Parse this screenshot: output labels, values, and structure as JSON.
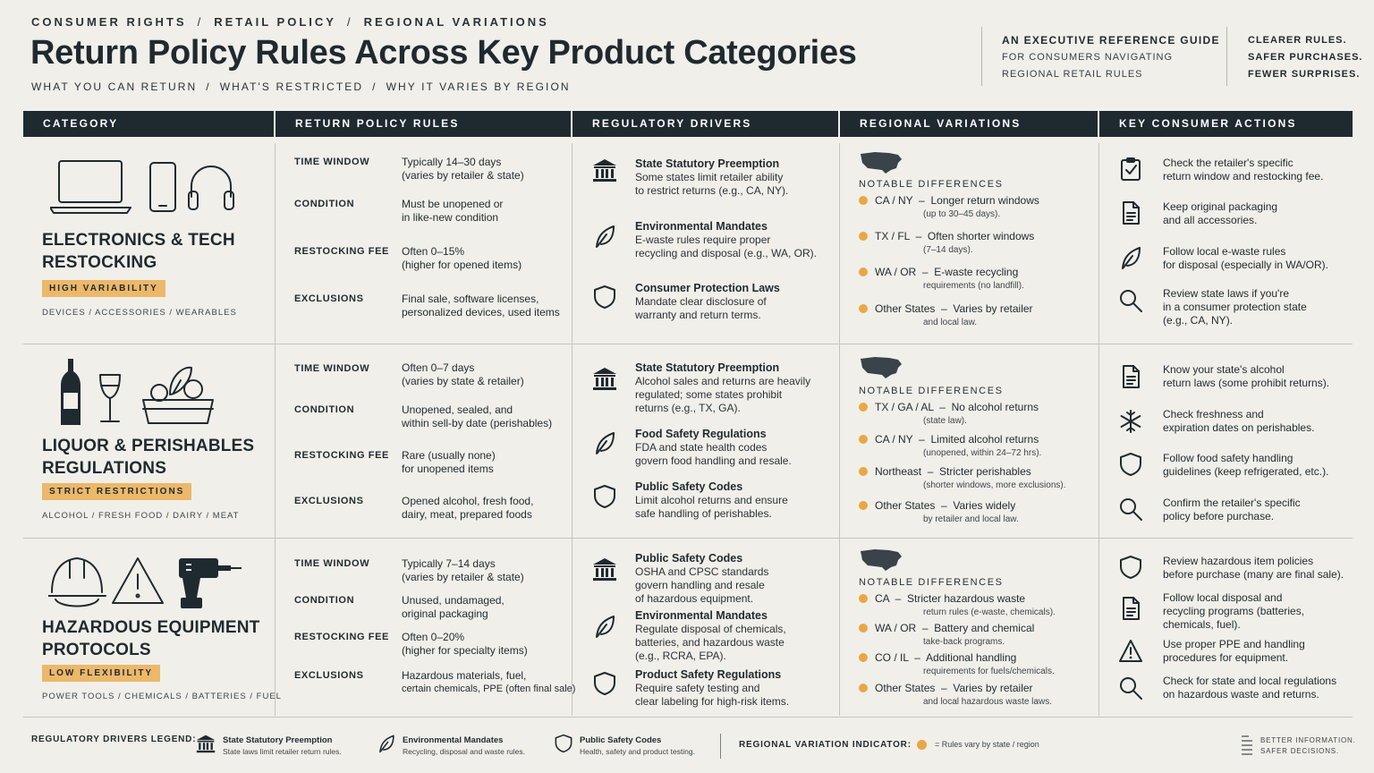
{
  "header": {
    "crumbs": [
      "CONSUMER RIGHTS",
      "RETAIL POLICY",
      "REGIONAL VARIATIONS"
    ],
    "crumb_sep": "/",
    "title": "Return Policy Rules Across Key Product Categories",
    "subcrumbs": [
      "WHAT YOU CAN RETURN",
      "WHAT'S RESTRICTED",
      "WHY IT VARIES BY REGION"
    ],
    "guide": [
      "AN EXECUTIVE REFERENCE GUIDE",
      "FOR CONSUMERS NAVIGATING",
      "REGIONAL RETAIL RULES"
    ],
    "tagline": [
      "CLEARER RULES.",
      "SAFER PURCHASES.",
      "FEWER SURPRISES."
    ]
  },
  "columns": [
    "CATEGORY",
    "RETURN POLICY RULES",
    "REGULATORY DRIVERS",
    "REGIONAL VARIATIONS",
    "KEY CONSUMER ACTIONS"
  ],
  "notable_label": "NOTABLE DIFFERENCES",
  "categories": [
    {
      "title": [
        "ELECTRONICS & TECH",
        "RESTOCKING"
      ],
      "badge": "HIGH VARIABILITY",
      "tags": "DEVICES  /  ACCESSORIES  /  WEARABLES",
      "icons": [
        "laptop-icon",
        "phone-icon",
        "headphones-icon"
      ],
      "rules": [
        {
          "label": "TIME WINDOW",
          "value": "Typically 14–30 days",
          "sub": "(varies by retailer & state)"
        },
        {
          "label": "CONDITION",
          "value": "Must be unopened or",
          "sub": "in like-new condition"
        },
        {
          "label": "RESTOCKING FEE",
          "value": "Often 0–15%",
          "sub": "(higher for opened items)"
        },
        {
          "label": "EXCLUSIONS",
          "value": "Final sale, software licenses,",
          "sub": "personalized devices, used items"
        }
      ],
      "drivers": [
        {
          "icon": "courthouse-icon",
          "title": "State Statutory Preemption",
          "desc": [
            "Some states limit retailer ability",
            "to restrict returns (e.g., CA, NY)."
          ]
        },
        {
          "icon": "leaf-icon",
          "title": "Environmental Mandates",
          "desc": [
            "E-waste rules require proper",
            "recycling and disposal (e.g., WA, OR)."
          ]
        },
        {
          "icon": "shield-icon",
          "title": "Consumer Protection Laws",
          "desc": [
            "Mandate clear disclosure of",
            "warranty and return terms."
          ]
        }
      ],
      "regions": [
        {
          "state": "CA / NY",
          "text": "Longer return windows",
          "sub": "(up to 30–45 days)."
        },
        {
          "state": "TX / FL",
          "text": "Often shorter windows",
          "sub": "(7–14 days)."
        },
        {
          "state": "WA / OR",
          "text": "E-waste recycling",
          "sub": "requirements (no landfill)."
        },
        {
          "state": "Other States",
          "text": "Varies by retailer",
          "sub": "and local law."
        }
      ],
      "actions": [
        {
          "icon": "checklist-icon",
          "text": [
            "Check the retailer's specific",
            "return window and restocking fee."
          ]
        },
        {
          "icon": "document-icon",
          "text": [
            "Keep original packaging",
            "and all accessories."
          ]
        },
        {
          "icon": "leaf-icon",
          "text": [
            "Follow local e-waste rules",
            "for disposal (especially in WA/OR)."
          ]
        },
        {
          "icon": "search-icon",
          "text": [
            "Review state laws if you're",
            "in a consumer protection state",
            "(e.g., CA, NY)."
          ]
        }
      ]
    },
    {
      "title": [
        "LIQUOR & PERISHABLES",
        "REGULATIONS"
      ],
      "badge": "STRICT RESTRICTIONS",
      "tags": "ALCOHOL  /  FRESH FOOD  /  DAIRY  /  MEAT",
      "icons": [
        "bottle-icon",
        "wine-glass-icon",
        "food-basket-icon"
      ],
      "rules": [
        {
          "label": "TIME WINDOW",
          "value": "Often 0–7 days",
          "sub": "(varies by state & retailer)"
        },
        {
          "label": "CONDITION",
          "value": "Unopened, sealed, and",
          "sub": "within sell-by date (perishables)"
        },
        {
          "label": "RESTOCKING FEE",
          "value": "Rare (usually none)",
          "sub": "for unopened items"
        },
        {
          "label": "EXCLUSIONS",
          "value": "Opened alcohol, fresh food,",
          "sub": "dairy, meat, prepared foods"
        }
      ],
      "drivers": [
        {
          "icon": "courthouse-icon",
          "title": "State Statutory Preemption",
          "desc": [
            "Alcohol sales and returns are heavily",
            "regulated; some states prohibit",
            "returns (e.g., TX, GA)."
          ]
        },
        {
          "icon": "leaf-icon",
          "title": "Food Safety Regulations",
          "desc": [
            "FDA and state health codes",
            "govern food handling and resale."
          ]
        },
        {
          "icon": "shield-icon",
          "title": "Public Safety Codes",
          "desc": [
            "Limit alcohol returns and ensure",
            "safe handling of perishables."
          ]
        }
      ],
      "regions": [
        {
          "state": "TX / GA / AL",
          "text": "No alcohol returns",
          "sub": "(state law)."
        },
        {
          "state": "CA / NY",
          "text": "Limited alcohol returns",
          "sub": "(unopened, within 24–72 hrs)."
        },
        {
          "state": "Northeast",
          "text": "Stricter perishables",
          "sub": "(shorter windows, more exclusions)."
        },
        {
          "state": "Other States",
          "text": "Varies widely",
          "sub": "by retailer and local law."
        }
      ],
      "actions": [
        {
          "icon": "document-icon",
          "text": [
            "Know your state's alcohol",
            "return laws (some prohibit returns)."
          ]
        },
        {
          "icon": "snowflake-icon",
          "text": [
            "Check freshness and",
            "expiration dates on perishables."
          ]
        },
        {
          "icon": "shield-icon",
          "text": [
            "Follow food safety handling",
            "guidelines (keep refrigerated, etc.)."
          ]
        },
        {
          "icon": "search-icon",
          "text": [
            "Confirm the retailer's specific",
            "policy before purchase."
          ]
        }
      ]
    },
    {
      "title": [
        "HAZARDOUS EQUIPMENT",
        "PROTOCOLS"
      ],
      "badge": "LOW FLEXIBILITY",
      "tags": "POWER TOOLS  /  CHEMICALS  /  BATTERIES  /  FUEL",
      "icons": [
        "hard-hat-icon",
        "warning-icon",
        "drill-icon"
      ],
      "rules": [
        {
          "label": "TIME WINDOW",
          "value": "Typically 7–14 days",
          "sub": "(varies by retailer & state)"
        },
        {
          "label": "CONDITION",
          "value": "Unused, undamaged,",
          "sub": "original packaging"
        },
        {
          "label": "RESTOCKING FEE",
          "value": "Often 0–20%",
          "sub": "(higher for specialty items)"
        },
        {
          "label": "EXCLUSIONS",
          "value": "Hazardous materials, fuel,",
          "sub": "certain chemicals, PPE (often final sale)"
        }
      ],
      "drivers": [
        {
          "icon": "courthouse-icon",
          "title": "Public Safety Codes",
          "desc": [
            "OSHA and CPSC standards",
            "govern handling and resale",
            "of hazardous equipment."
          ]
        },
        {
          "icon": "leaf-icon",
          "title": "Environmental Mandates",
          "desc": [
            "Regulate disposal of chemicals,",
            "batteries, and hazardous waste",
            "(e.g., RCRA, EPA)."
          ]
        },
        {
          "icon": "shield-icon",
          "title": "Product Safety Regulations",
          "desc": [
            "Require safety testing and",
            "clear labeling for high-risk items."
          ]
        }
      ],
      "regions": [
        {
          "state": "CA",
          "text": "Stricter hazardous waste",
          "sub": "return rules (e-waste, chemicals)."
        },
        {
          "state": "WA / OR",
          "text": "Battery and chemical",
          "sub": "take-back programs."
        },
        {
          "state": "CO / IL",
          "text": "Additional handling",
          "sub": "requirements for fuels/chemicals."
        },
        {
          "state": "Other States",
          "text": "Varies by retailer",
          "sub": "and local hazardous waste laws."
        }
      ],
      "actions": [
        {
          "icon": "shield-icon",
          "text": [
            "Review hazardous item policies",
            "before purchase (many are final sale)."
          ]
        },
        {
          "icon": "document-icon",
          "text": [
            "Follow local disposal and",
            "recycling programs (batteries,",
            "chemicals, fuel)."
          ]
        },
        {
          "icon": "warning-icon",
          "text": [
            "Use proper PPE and handling",
            "procedures for equipment."
          ]
        },
        {
          "icon": "search-icon",
          "text": [
            "Check for state and local regulations",
            "on hazardous waste and returns."
          ]
        }
      ]
    }
  ],
  "legend": {
    "label": "REGULATORY DRIVERS LEGEND:",
    "items": [
      {
        "icon": "courthouse-icon",
        "title": "State Statutory Preemption",
        "desc": "State laws limit retailer return rules."
      },
      {
        "icon": "leaf-icon",
        "title": "Environmental Mandates",
        "desc": "Recycling, disposal and waste rules."
      },
      {
        "icon": "shield-icon",
        "title": "Public Safety Codes",
        "desc": "Health, safety and product testing."
      }
    ],
    "indicator_label": "REGIONAL VARIATION INDICATOR:",
    "indicator_text": "= Rules vary by state / region",
    "indicator_color": "#e9a746"
  },
  "footer": [
    "BETTER INFORMATION.",
    "SAFER DECISIONS."
  ],
  "colors": {
    "ink": "#1f2a30",
    "accent": "#ecb86a",
    "dot": "#e9a746",
    "paper": "#f1efe9"
  }
}
